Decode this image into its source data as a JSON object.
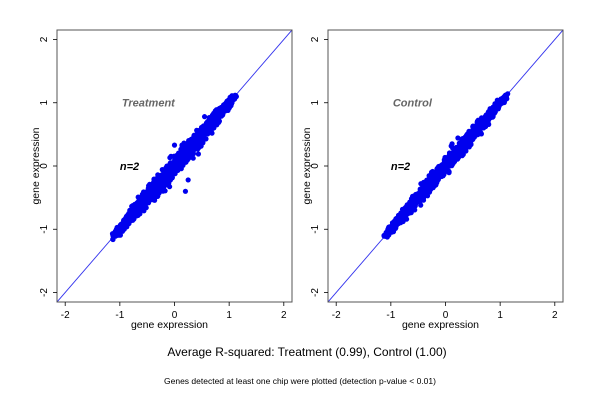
{
  "chart_data": [
    {
      "type": "scatter",
      "title": "Treatment",
      "annotation": "n=2",
      "xlabel": "gene expression",
      "ylabel": "gene expression",
      "xlim": [
        -2.15,
        2.15
      ],
      "ylim": [
        -2.15,
        2.15
      ],
      "xticks": [
        -2,
        -1,
        0,
        1,
        2
      ],
      "yticks": [
        -2,
        -1,
        0,
        1,
        2
      ],
      "reference_line": "y = x",
      "point_color": "#0000ee",
      "line_color": "#3333ee",
      "cloud": {
        "x_range": [
          -1.1,
          1.1
        ],
        "spread": 0.09
      },
      "outliers": [
        [
          0.55,
          0.78
        ],
        [
          0.0,
          0.33
        ],
        [
          0.2,
          -0.4
        ],
        [
          0.25,
          -0.22
        ],
        [
          -0.05,
          0.0
        ]
      ],
      "r_squared": 0.99
    },
    {
      "type": "scatter",
      "title": "Control",
      "annotation": "n=2",
      "xlabel": "gene expression",
      "ylabel": "gene expression",
      "xlim": [
        -2.15,
        2.15
      ],
      "ylim": [
        -2.15,
        2.15
      ],
      "xticks": [
        -2,
        -1,
        0,
        1,
        2
      ],
      "yticks": [
        -2,
        -1,
        0,
        1,
        2
      ],
      "reference_line": "y = x",
      "point_color": "#0000ee",
      "line_color": "#3333ee",
      "cloud": {
        "x_range": [
          -1.1,
          1.1
        ],
        "spread": 0.07
      },
      "outliers": [
        [
          0.12,
          0.35
        ],
        [
          -0.45,
          -0.28
        ],
        [
          -0.4,
          -0.3
        ],
        [
          0.5,
          0.62
        ]
      ],
      "r_squared": 1.0
    }
  ],
  "caption": "Average R-squared: Treatment (0.99), Control (1.00)",
  "footnote": "Genes detected at least one chip were plotted (detection p-value < 0.01)"
}
